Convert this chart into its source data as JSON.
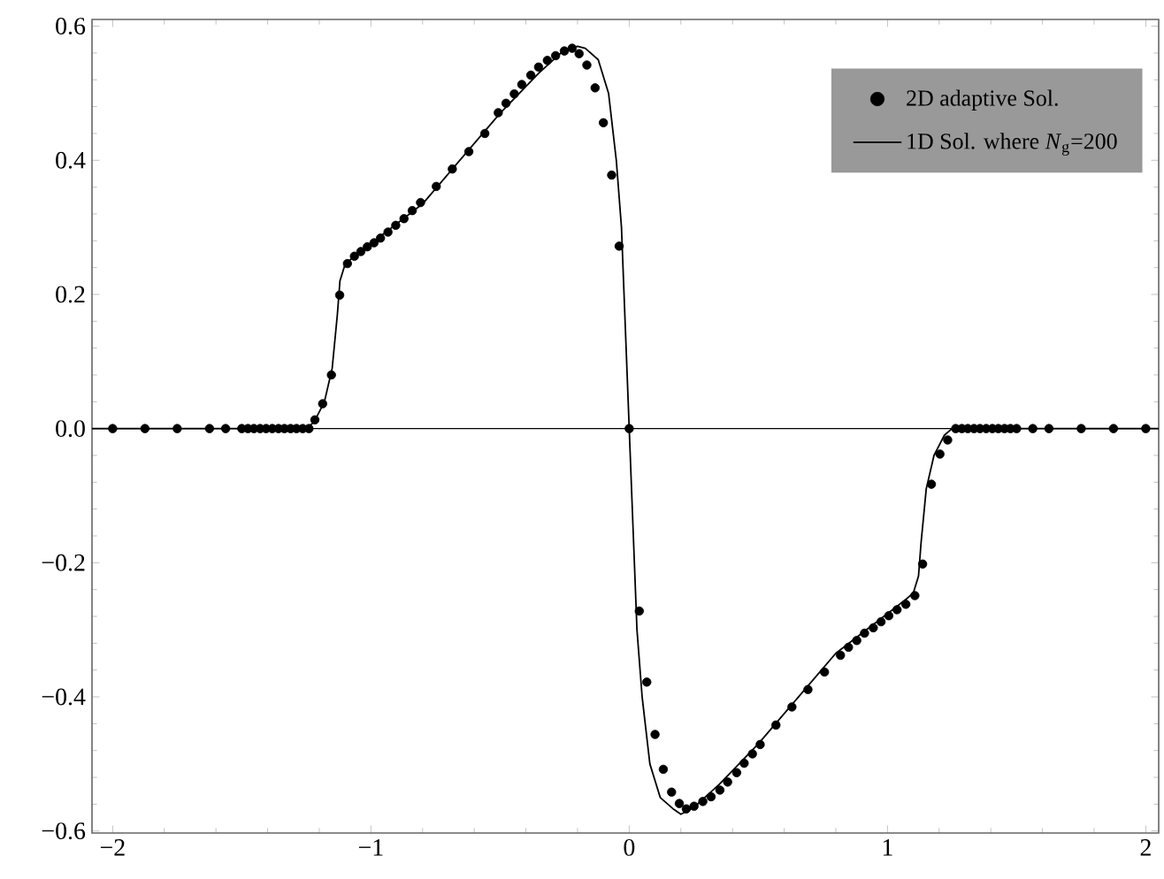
{
  "chart_data": {
    "type": "scatter",
    "xlim": [
      -2.08,
      2.05
    ],
    "ylim": [
      -0.603,
      0.61
    ],
    "xticks": [
      {
        "value": -2,
        "label": "−2"
      },
      {
        "value": -1,
        "label": "−1"
      },
      0,
      1,
      2
    ],
    "yticks": [
      {
        "value": -0.6,
        "label": "−0.6"
      },
      {
        "value": -0.4,
        "label": "−0.4"
      },
      {
        "value": -0.2,
        "label": "−0.2"
      },
      {
        "value": 0,
        "label": "0.0"
      },
      {
        "value": 0.2,
        "label": "0.2"
      },
      {
        "value": 0.4,
        "label": "0.4"
      },
      {
        "value": 0.6,
        "label": "0.6"
      }
    ],
    "grid": false,
    "legend": "top right",
    "ref_lines": [
      {
        "axis": "y",
        "value": 0,
        "color": "#000000"
      }
    ],
    "series": [
      {
        "name": "2D adaptive Sol.",
        "marker": "circle",
        "color": "#000000",
        "x": [
          -2,
          -1.875,
          -1.75,
          -1.625,
          -1.5625,
          -1.5,
          -1.476,
          -1.453,
          -1.429,
          -1.406,
          -1.382,
          -1.358,
          -1.335,
          -1.311,
          -1.288,
          -1.264,
          -1.24,
          -1.217,
          -1.187,
          -1.153,
          -1.121,
          -1.091,
          -1.064,
          -1.039,
          -1.014,
          -0.988,
          -0.963,
          -0.934,
          -0.904,
          -0.872,
          -0.84,
          -0.808,
          -0.747,
          -0.685,
          -0.621,
          -0.559,
          -0.507,
          -0.477,
          -0.445,
          -0.416,
          -0.381,
          -0.351,
          -0.317,
          -0.285,
          -0.251,
          -0.221,
          -0.194,
          -0.164,
          -0.132,
          -0.1,
          -0.068,
          -0.039,
          0,
          0.039,
          0.068,
          0.1,
          0.132,
          0.164,
          0.194,
          0.221,
          0.251,
          0.285,
          0.317,
          0.351,
          0.381,
          0.416,
          0.445,
          0.477,
          0.507,
          0.568,
          0.63,
          0.692,
          0.756,
          0.818,
          0.849,
          0.881,
          0.911,
          0.945,
          0.975,
          1.005,
          1.037,
          1.071,
          1.106,
          1.136,
          1.17,
          1.203,
          1.233,
          1.264,
          1.288,
          1.311,
          1.335,
          1.358,
          1.382,
          1.406,
          1.429,
          1.453,
          1.476,
          1.5,
          1.5625,
          1.625,
          1.75,
          1.875,
          2
        ],
        "values": [
          0,
          0,
          0,
          0,
          0,
          0,
          0,
          0,
          0,
          0,
          0,
          0,
          0,
          0,
          0,
          0,
          0,
          0.013,
          0.037,
          0.08,
          0.199,
          0.246,
          0.257,
          0.264,
          0.271,
          0.277,
          0.284,
          0.293,
          0.303,
          0.313,
          0.325,
          0.337,
          0.361,
          0.387,
          0.413,
          0.44,
          0.471,
          0.485,
          0.499,
          0.513,
          0.527,
          0.539,
          0.549,
          0.556,
          0.563,
          0.567,
          0.559,
          0.542,
          0.508,
          0.456,
          0.378,
          0.272,
          0,
          -0.272,
          -0.378,
          -0.456,
          -0.508,
          -0.542,
          -0.559,
          -0.567,
          -0.563,
          -0.556,
          -0.549,
          -0.539,
          -0.527,
          -0.513,
          -0.499,
          -0.485,
          -0.471,
          -0.442,
          -0.415,
          -0.389,
          -0.363,
          -0.338,
          -0.326,
          -0.316,
          -0.305,
          -0.297,
          -0.288,
          -0.279,
          -0.27,
          -0.262,
          -0.249,
          -0.202,
          -0.083,
          -0.038,
          -0.017,
          0,
          0,
          0,
          0,
          0,
          0,
          0,
          0,
          0,
          0,
          0,
          0,
          0,
          0,
          0,
          0
        ]
      },
      {
        "name": "1D Sol. where *N*$_{g}$=200",
        "type": "line",
        "marker": "none",
        "line_style": "solid",
        "color": "#000000",
        "x": [
          -2.08,
          -1.25,
          -1.22,
          -1.18,
          -1.15,
          -1.13,
          -1.12,
          -1.1,
          -1.07,
          -0.8,
          -0.5,
          -0.35,
          -0.25,
          -0.2,
          -0.17,
          -0.12,
          -0.08,
          -0.05,
          -0.03,
          -0.015,
          0,
          0.015,
          0.03,
          0.05,
          0.08,
          0.12,
          0.17,
          0.2,
          0.25,
          0.35,
          0.5,
          0.8,
          1.07,
          1.1,
          1.12,
          1.13,
          1.15,
          1.18,
          1.22,
          1.25,
          2.05
        ],
        "values": [
          0,
          0,
          0.01,
          0.04,
          0.09,
          0.17,
          0.22,
          0.245,
          0.255,
          0.335,
          0.47,
          0.53,
          0.565,
          0.57,
          0.567,
          0.55,
          0.5,
          0.4,
          0.3,
          0.15,
          0,
          -0.15,
          -0.3,
          -0.4,
          -0.5,
          -0.55,
          -0.567,
          -0.575,
          -0.565,
          -0.53,
          -0.47,
          -0.335,
          -0.255,
          -0.245,
          -0.22,
          -0.17,
          -0.09,
          -0.04,
          -0.01,
          0,
          0
        ]
      }
    ]
  }
}
